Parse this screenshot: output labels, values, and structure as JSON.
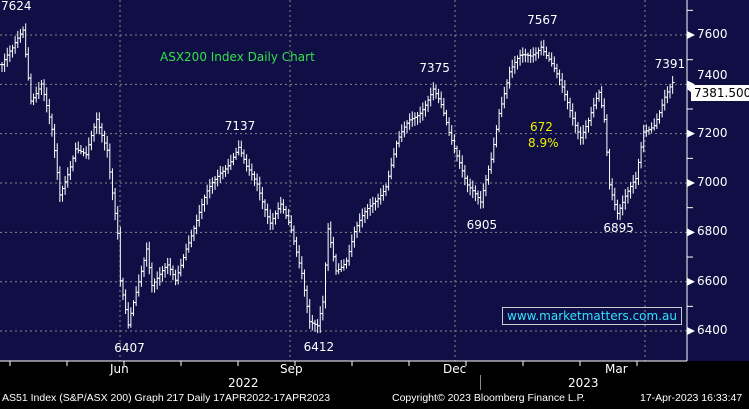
{
  "chart_data": {
    "type": "line",
    "title": "ASX200 Index Daily Chart",
    "ylim": [
      6350,
      7700
    ],
    "yticks": [
      6400,
      6600,
      6800,
      7000,
      7200,
      7400,
      7600
    ],
    "last_price": "7381.500",
    "keypoints": [
      [
        0,
        7480
      ],
      [
        4,
        7530
      ],
      [
        8,
        7624
      ],
      [
        11,
        7350
      ],
      [
        15,
        7400
      ],
      [
        19,
        7200
      ],
      [
        22,
        6950
      ],
      [
        25,
        7050
      ],
      [
        28,
        7150
      ],
      [
        32,
        7100
      ],
      [
        36,
        7250
      ],
      [
        40,
        7150
      ],
      [
        44,
        6800
      ],
      [
        45,
        6600
      ],
      [
        48,
        6407
      ],
      [
        51,
        6550
      ],
      [
        55,
        6750
      ],
      [
        57,
        6600
      ],
      [
        63,
        6650
      ],
      [
        66,
        6600
      ],
      [
        70,
        6750
      ],
      [
        74,
        6850
      ],
      [
        78,
        6950
      ],
      [
        83,
        7050
      ],
      [
        90,
        7137
      ],
      [
        93,
        7050
      ],
      [
        97,
        7000
      ],
      [
        102,
        6850
      ],
      [
        106,
        6900
      ],
      [
        110,
        6800
      ],
      [
        114,
        6650
      ],
      [
        117,
        6450
      ],
      [
        120,
        6412
      ],
      [
        122,
        6500
      ],
      [
        124,
        6800
      ],
      [
        127,
        6650
      ],
      [
        131,
        6700
      ],
      [
        134,
        6800
      ],
      [
        140,
        6900
      ],
      [
        146,
        7000
      ],
      [
        150,
        7150
      ],
      [
        155,
        7250
      ],
      [
        159,
        7300
      ],
      [
        164,
        7375
      ],
      [
        167,
        7300
      ],
      [
        170,
        7200
      ],
      [
        174,
        7100
      ],
      [
        177,
        7000
      ],
      [
        182,
        6905
      ],
      [
        186,
        7100
      ],
      [
        189,
        7300
      ],
      [
        193,
        7450
      ],
      [
        197,
        7500
      ],
      [
        201,
        7520
      ],
      [
        205,
        7567
      ],
      [
        208,
        7500
      ],
      [
        212,
        7400
      ],
      [
        216,
        7300
      ],
      [
        220,
        7200
      ],
      [
        223,
        7250
      ],
      [
        227,
        7350
      ],
      [
        229,
        7250
      ],
      [
        231,
        7000
      ],
      [
        234,
        6895
      ],
      [
        237,
        6950
      ],
      [
        241,
        7000
      ],
      [
        244,
        7200
      ],
      [
        248,
        7250
      ],
      [
        252,
        7350
      ],
      [
        255,
        7391
      ]
    ],
    "annotations": [
      {
        "text": "7624",
        "day": 8,
        "price": 7624
      },
      {
        "text": "6407",
        "day": 48,
        "price": 6407
      },
      {
        "text": "7137",
        "day": 90,
        "price": 7137
      },
      {
        "text": "6412",
        "day": 120,
        "price": 6412
      },
      {
        "text": "7375",
        "day": 164,
        "price": 7375
      },
      {
        "text": "6905",
        "day": 182,
        "price": 6905
      },
      {
        "text": "7567",
        "day": 205,
        "price": 7567
      },
      {
        "text": "6895",
        "day": 234,
        "price": 6895
      },
      {
        "text": "7391",
        "day": 255,
        "price": 7391
      }
    ],
    "move_points": "672",
    "move_pct": "8.9%",
    "x_months": [
      "Jun",
      "Sep",
      "Dec",
      "Mar"
    ],
    "x_years": [
      "2022",
      "2023"
    ]
  },
  "watermark": "www.marketmatters.com.au",
  "footer": {
    "left": "AS51 Index (S&P/ASX 200) Graph 217  Daily 17APR2022-17APR2023",
    "center": "Copyright© 2023 Bloomberg Finance L.P.",
    "right": "17-Apr-2023 16:33:47"
  },
  "colors": {
    "bg": "#0f0f45",
    "title": "#33e04a",
    "move": "#f0f000",
    "watermark": "#33e0ff"
  }
}
